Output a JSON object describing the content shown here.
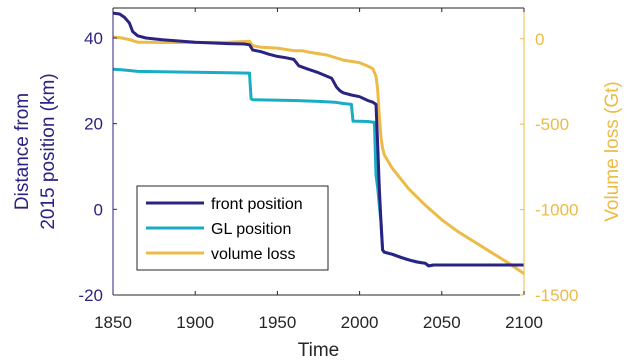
{
  "chart_data": {
    "type": "line",
    "title": "",
    "xlabel": "Time",
    "ylabel_left": [
      "Distance from",
      "2015 position (km)"
    ],
    "ylabel_right": "Volume loss (Gt)",
    "xlim": [
      1850,
      2100
    ],
    "ylim_left": [
      -20,
      47
    ],
    "ylim_right": [
      -1500,
      180
    ],
    "xticks": [
      1850,
      1900,
      1950,
      2000,
      2050,
      2100
    ],
    "xtick_labels": [
      "1850",
      "1900",
      "1950",
      "2000",
      "2050",
      "2100"
    ],
    "yticks_left": [
      -20,
      0,
      20,
      40
    ],
    "ytick_labels_left": [
      "-20",
      "0",
      "20",
      "40"
    ],
    "yticks_right": [
      -1500,
      -1000,
      -500,
      0
    ],
    "ytick_labels_right": [
      "-1500",
      "-1000",
      "-500",
      "0"
    ],
    "grid": false,
    "legend_position": "lower-left",
    "colors": {
      "front": "#2b2382",
      "gl": "#18adc5",
      "volume": "#ecbb47",
      "left_axis": "#2b2382",
      "right_axis": "#ecbb47",
      "frame": "#262626"
    },
    "series": [
      {
        "name": "front position",
        "axis": "left",
        "x": [
          1850,
          1854,
          1857,
          1860,
          1862,
          1865,
          1870,
          1880,
          1900,
          1920,
          1930,
          1933,
          1935,
          1940,
          1945,
          1950,
          1955,
          1960,
          1963,
          1968,
          1975,
          1983,
          1986,
          1988,
          1990,
          1995,
          2000,
          2005,
          2008,
          2010,
          2011,
          2012,
          2013,
          2014,
          2015,
          2020,
          2025,
          2030,
          2035,
          2040,
          2042,
          2045,
          2050,
          2060,
          2070,
          2080,
          2090,
          2100
        ],
        "y": [
          45.8,
          45.6,
          44.8,
          43.5,
          41.5,
          40.5,
          40.0,
          39.6,
          39.0,
          38.7,
          38.6,
          38.4,
          37.2,
          36.8,
          36.2,
          35.7,
          35.4,
          35.0,
          33.5,
          32.8,
          31.9,
          30.6,
          28.5,
          27.7,
          27.2,
          26.7,
          26.3,
          25.4,
          25.0,
          24.5,
          15.0,
          5.0,
          -3.0,
          -9.5,
          -10.0,
          -10.5,
          -11.2,
          -11.8,
          -12.3,
          -12.6,
          -13.2,
          -13.0,
          -13.0,
          -13.0,
          -13.0,
          -13.0,
          -13.0,
          -13.0
        ]
      },
      {
        "name": "GL position",
        "axis": "left",
        "x": [
          1850,
          1855,
          1860,
          1865,
          1900,
          1920,
          1933,
          1934,
          1935,
          1960,
          1975,
          1985,
          1990,
          1995,
          1996,
          2005,
          2009,
          2010,
          2011,
          2012,
          2013,
          2014,
          2015,
          2020,
          2025,
          2030,
          2035,
          2040,
          2042,
          2045,
          2050,
          2060,
          2070,
          2080,
          2090,
          2100
        ],
        "y": [
          32.7,
          32.6,
          32.4,
          32.2,
          32.0,
          31.9,
          31.8,
          25.8,
          25.6,
          25.4,
          25.2,
          25.0,
          24.7,
          24.5,
          20.6,
          20.5,
          20.3,
          8.0,
          5.0,
          1.0,
          -3.0,
          -9.5,
          -10.0,
          -10.5,
          -11.2,
          -11.8,
          -12.3,
          -12.6,
          -13.2,
          -13.0,
          -13.0,
          -13.0,
          -13.0,
          -13.0,
          -13.0,
          -13.0
        ]
      },
      {
        "name": "volume loss",
        "axis": "right",
        "x": [
          1850,
          1855,
          1860,
          1865,
          1870,
          1880,
          1900,
          1920,
          1933,
          1935,
          1940,
          1950,
          1960,
          1965,
          1970,
          1980,
          1985,
          1990,
          2000,
          2005,
          2008,
          2010,
          2011,
          2012,
          2013,
          2014,
          2015,
          2020,
          2030,
          2040,
          2050,
          2060,
          2070,
          2080,
          2090,
          2100
        ],
        "y": [
          10,
          5,
          -5,
          -20,
          -20,
          -22,
          -22,
          -20,
          -15,
          -40,
          -50,
          -55,
          -70,
          -70,
          -80,
          -95,
          -110,
          -125,
          -140,
          -160,
          -175,
          -220,
          -300,
          -450,
          -580,
          -640,
          -680,
          -760,
          -880,
          -975,
          -1060,
          -1130,
          -1190,
          -1250,
          -1310,
          -1375
        ]
      }
    ]
  }
}
